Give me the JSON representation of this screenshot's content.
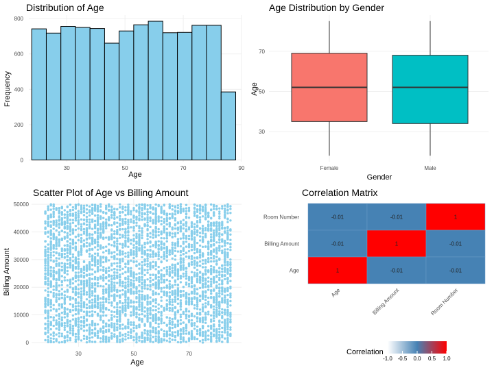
{
  "panels": {
    "histogram": {
      "title": "Distribution of Age"
    },
    "boxplot": {
      "title": "Age Distribution by Gender"
    },
    "scatter": {
      "title": "Scatter Plot of Age vs Billing Amount"
    },
    "heatmap": {
      "title": "Correlation Matrix",
      "legend_title": "Correlation"
    }
  },
  "colors": {
    "hist_fill": "#87CEEB",
    "female": "#F8766D",
    "male": "#00BFC4",
    "scatter_point": "#87CEEB",
    "corr_low": "#4682B4",
    "corr_mid": "#ffffff",
    "corr_high": "#ff0000"
  },
  "chart_data": [
    {
      "type": "bar",
      "title": "Distribution of Age",
      "xlabel": "Age",
      "ylabel": "Frequency",
      "bin_edges": [
        18,
        23,
        28,
        33,
        38,
        43,
        48,
        53,
        58,
        63,
        68,
        73,
        78,
        83,
        88
      ],
      "values": [
        742,
        718,
        756,
        750,
        744,
        661,
        730,
        765,
        785,
        720,
        722,
        762,
        762,
        385
      ],
      "xticks": [
        "30",
        "50",
        "70",
        "90"
      ],
      "xtick_values": [
        30,
        50,
        70,
        90
      ],
      "yticks": [
        "0",
        "200",
        "400",
        "600",
        "800"
      ],
      "ytick_values": [
        0,
        200,
        400,
        600,
        800
      ],
      "xlim": [
        17,
        90
      ],
      "ylim": [
        -10,
        820
      ],
      "grid": true
    },
    {
      "type": "box",
      "title": "Age Distribution by Gender",
      "xlabel": "Gender",
      "ylabel": "Age",
      "categories": [
        "Female",
        "Male"
      ],
      "stats": [
        {
          "min": 18,
          "q1": 35,
          "median": 52,
          "q3": 69,
          "max": 85
        },
        {
          "min": 18,
          "q1": 34,
          "median": 52,
          "q3": 68,
          "max": 85
        }
      ],
      "yticks": [
        "30",
        "50",
        "70"
      ],
      "ytick_values": [
        30,
        50,
        70
      ],
      "ylim": [
        15,
        88
      ],
      "grid": true
    },
    {
      "type": "scatter",
      "title": "Scatter Plot of Age vs Billing Amount",
      "xlabel": "Age",
      "ylabel": "Billing Amount",
      "x_range": [
        18,
        85
      ],
      "y_range": [
        0,
        50000
      ],
      "xticks": [
        "30",
        "50",
        "70"
      ],
      "xtick_values": [
        30,
        50,
        70
      ],
      "yticks": [
        "0",
        "10000",
        "20000",
        "30000",
        "40000",
        "50000"
      ],
      "ytick_values": [
        0,
        10000,
        20000,
        30000,
        40000,
        50000
      ],
      "xlim": [
        13,
        89
      ],
      "ylim": [
        -1500,
        52000
      ],
      "grid": true
    },
    {
      "type": "heatmap",
      "title": "Correlation Matrix",
      "x_labels": [
        "Age",
        "Billing Amount",
        "Room Number"
      ],
      "y_labels": [
        "Room Number",
        "Billing Amount",
        "Age"
      ],
      "cell_labels": [
        [
          "-0.01",
          "-0.01",
          "1"
        ],
        [
          "-0.01",
          "1",
          "-0.01"
        ],
        [
          "1",
          "-0.01",
          "-0.01"
        ]
      ],
      "cell_values": [
        [
          -0.01,
          -0.01,
          1
        ],
        [
          -0.01,
          1,
          -0.01
        ],
        [
          1,
          -0.01,
          -0.01
        ]
      ],
      "legend_title": "Correlation",
      "legend_ticks": [
        "-1.0",
        "-0.5",
        "0.0",
        "0.5",
        "1.0"
      ],
      "legend_tick_values": [
        -1,
        -0.5,
        0,
        0.5,
        1
      ],
      "legend_placement": "bottom"
    }
  ]
}
